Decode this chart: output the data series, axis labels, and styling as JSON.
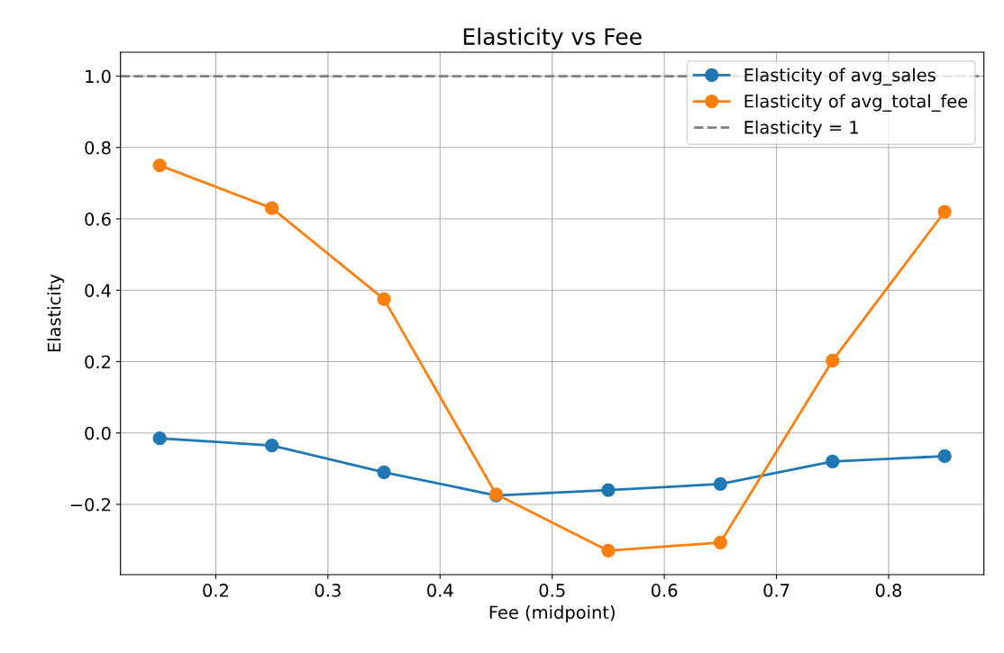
{
  "chart_data": {
    "type": "line",
    "title": "Elasticity vs Fee",
    "xlabel": "Fee (midpoint)",
    "ylabel": "Elasticity",
    "x": [
      0.15,
      0.25,
      0.35,
      0.45,
      0.55,
      0.65,
      0.75,
      0.85
    ],
    "series": [
      {
        "name": "Elasticity of avg_sales",
        "color": "#1f77b4",
        "values": [
          -0.015,
          -0.035,
          -0.11,
          -0.175,
          -0.16,
          -0.143,
          -0.08,
          -0.065
        ]
      },
      {
        "name": "Elasticity of avg_total_fee",
        "color": "#ff7f0e",
        "values": [
          0.75,
          0.63,
          0.375,
          -0.172,
          -0.33,
          -0.307,
          0.203,
          0.62
        ]
      }
    ],
    "ref_lines": [
      {
        "axis": "y",
        "value": 1,
        "label": "Elasticity = 1",
        "color": "#808080",
        "line_style": "dashed"
      }
    ],
    "xlim": [
      0.115,
      0.885
    ],
    "ylim": [
      -0.397,
      1.067
    ],
    "xticks": [
      0.2,
      0.3,
      0.4,
      0.5,
      0.6,
      0.7,
      0.8
    ],
    "yticks": [
      {
        "value": -0.2,
        "label": "−0.2"
      },
      {
        "value": 0,
        "label": "0.0"
      },
      0.2,
      0.4,
      0.6,
      0.8,
      {
        "value": 1,
        "label": "1.0"
      }
    ],
    "grid": true,
    "legend": "top right",
    "marker": "circle",
    "line_style": "solid"
  }
}
